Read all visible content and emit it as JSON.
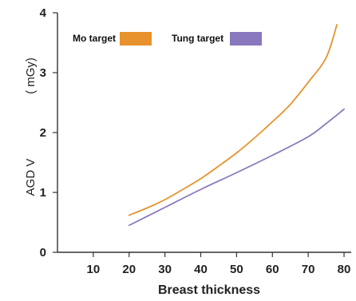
{
  "chart_data": {
    "type": "line",
    "xlabel": "Breast thickness",
    "ylabel": "AGD V",
    "ylabel_unit": "( mGy)",
    "xlim": [
      0,
      82
    ],
    "ylim": [
      0,
      4
    ],
    "x_ticks": [
      10,
      20,
      30,
      40,
      50,
      60,
      70,
      80
    ],
    "x_tick_labels": [
      "10",
      "20",
      "30",
      "40",
      "50",
      "60",
      "70",
      "80"
    ],
    "y_ticks": [
      0,
      1,
      2,
      3,
      4
    ],
    "y_tick_labels": [
      "0",
      "1",
      "2",
      "3",
      "4"
    ],
    "grid": false,
    "legend_position": "top-left",
    "series": [
      {
        "name": "Mo target",
        "color": "#E8922E",
        "x": [
          20,
          25,
          30,
          35,
          40,
          45,
          50,
          55,
          60,
          65,
          70,
          75,
          78
        ],
        "y": [
          0.62,
          0.74,
          0.88,
          1.05,
          1.23,
          1.44,
          1.66,
          1.91,
          2.18,
          2.47,
          2.84,
          3.25,
          3.8
        ]
      },
      {
        "name": "Tung target",
        "color": "#8A78BE",
        "x": [
          20,
          30,
          40,
          50,
          60,
          70,
          75,
          80
        ],
        "y": [
          0.45,
          0.75,
          1.05,
          1.33,
          1.62,
          1.93,
          2.15,
          2.39
        ]
      }
    ]
  }
}
